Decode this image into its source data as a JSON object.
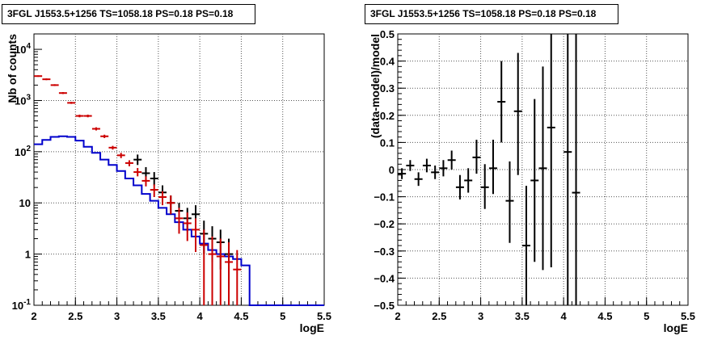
{
  "chart_data": [
    {
      "type": "histogram",
      "title": "3FGL J1553.5+1256 TS=1058.18 PS=0.18 PS=0.18",
      "xlabel": "logE",
      "ylabel": "Nb of counts",
      "xlim": [
        2,
        5.5
      ],
      "ylim": [
        0.1,
        20000
      ],
      "yscale": "log",
      "grid": true,
      "x_ticks": [
        "2",
        "2.5",
        "3",
        "3.5",
        "4",
        "4.5",
        "5",
        "5.5"
      ],
      "y_ticks": [
        "10^{-1}",
        "1",
        "10",
        "10^{2}",
        "10^{3}",
        "10^{4}"
      ],
      "bin_edges": [
        2.0,
        2.1,
        2.2,
        2.3,
        2.4,
        2.5,
        2.6,
        2.7,
        2.8,
        2.9,
        3.0,
        3.1,
        3.2,
        3.3,
        3.4,
        3.5,
        3.6,
        3.7,
        3.8,
        3.9,
        4.0,
        4.1,
        4.2,
        4.3,
        4.4,
        4.5,
        4.6,
        4.7,
        4.8,
        4.9,
        5.0,
        5.1,
        5.2,
        5.3,
        5.4,
        5.5
      ],
      "series": [
        {
          "kind": "step",
          "color": "#0000cc",
          "values": [
            140,
            170,
            195,
            200,
            195,
            165,
            125,
            95,
            70,
            55,
            42,
            30,
            22,
            15,
            11,
            8,
            6,
            4.2,
            3,
            2.2,
            1.6,
            1.2,
            1.0,
            0.9,
            0.8,
            0.6,
            0.1,
            0.1,
            0.1,
            0.1,
            0.1,
            0.1,
            0.1,
            0.1,
            0.1
          ]
        },
        {
          "kind": "points",
          "color": "#000000",
          "x": [
            3.25,
            3.35,
            3.45,
            3.55,
            3.65,
            3.75,
            3.85,
            3.95,
            4.05,
            4.15,
            4.25,
            4.35
          ],
          "y": [
            70,
            38,
            30,
            16,
            10,
            7,
            5,
            6,
            2.5,
            2,
            1.7,
            1.0
          ],
          "y_low": [
            55,
            28,
            22,
            11,
            6,
            4,
            2.8,
            3.5,
            1,
            0.7,
            0.5,
            0.2
          ],
          "y_high": [
            88,
            50,
            40,
            22,
            14,
            10,
            8,
            9,
            4.5,
            3.5,
            3,
            2
          ]
        },
        {
          "kind": "points",
          "color": "#cc0000",
          "x": [
            2.05,
            2.15,
            2.25,
            2.35,
            2.45,
            2.55,
            2.65,
            2.75,
            2.85,
            2.95,
            3.05,
            3.15,
            3.25,
            3.35,
            3.45,
            3.55,
            3.65,
            3.75,
            3.85,
            3.95,
            4.05,
            4.15,
            4.25,
            4.35,
            4.45
          ],
          "y": [
            3000,
            2600,
            2000,
            1400,
            900,
            500,
            500,
            280,
            200,
            120,
            85,
            60,
            40,
            27,
            18,
            13,
            10,
            5,
            4,
            3,
            1.5,
            1.0,
            0.9,
            0.7,
            0.5
          ],
          "y_low": [
            2900,
            2500,
            1920,
            1340,
            860,
            470,
            470,
            260,
            185,
            110,
            75,
            52,
            33,
            21,
            13,
            9,
            6,
            2.5,
            1.8,
            1.1,
            0.1,
            0.1,
            0.1,
            0.1,
            0.1
          ],
          "y_high": [
            3100,
            2700,
            2080,
            1460,
            940,
            530,
            530,
            300,
            215,
            130,
            95,
            68,
            48,
            33,
            23,
            17,
            14,
            8,
            6.5,
            5,
            3,
            2.2,
            2,
            1.7,
            1.2
          ]
        }
      ]
    },
    {
      "type": "scatter",
      "title": "3FGL J1553.5+1256 TS=1058.18 PS=0.18 PS=0.18",
      "xlabel": "logE",
      "ylabel": "(data-model)/model",
      "xlim": [
        2,
        5.5
      ],
      "ylim": [
        -0.5,
        0.5
      ],
      "grid": true,
      "x_ticks": [
        "2",
        "2.5",
        "3",
        "3.5",
        "4",
        "4.5",
        "5",
        "5.5"
      ],
      "y_ticks": [
        "−0.5",
        "−0.4",
        "−0.3",
        "−0.2",
        "−0.1",
        "0",
        "0.1",
        "0.2",
        "0.3",
        "0.4",
        "0.5"
      ],
      "series": [
        {
          "kind": "points",
          "color": "#000000",
          "x": [
            2.05,
            2.15,
            2.25,
            2.35,
            2.45,
            2.55,
            2.65,
            2.75,
            2.85,
            2.95,
            3.05,
            3.15,
            3.25,
            3.35,
            3.45,
            3.55,
            3.65,
            3.75,
            3.85,
            4.05,
            4.15
          ],
          "y": [
            -0.015,
            0.015,
            -0.035,
            0.015,
            -0.01,
            0.005,
            0.035,
            -0.065,
            -0.04,
            0.045,
            -0.065,
            0.005,
            0.25,
            -0.115,
            0.215,
            -0.28,
            -0.04,
            0.005,
            0.155,
            0.065,
            -0.085
          ],
          "y_low": [
            -0.035,
            -0.005,
            -0.06,
            -0.01,
            -0.035,
            -0.025,
            0.0,
            -0.11,
            -0.085,
            -0.015,
            -0.145,
            -0.09,
            0.1,
            -0.27,
            -0.02,
            -0.5,
            -0.34,
            -0.37,
            -0.36,
            -0.5,
            -0.5
          ],
          "y_high": [
            0.005,
            0.035,
            -0.01,
            0.04,
            0.015,
            0.035,
            0.07,
            -0.02,
            0.005,
            0.11,
            0.02,
            0.11,
            0.4,
            0.03,
            0.43,
            -0.06,
            0.26,
            0.38,
            0.5,
            0.5,
            0.5
          ]
        }
      ]
    }
  ]
}
